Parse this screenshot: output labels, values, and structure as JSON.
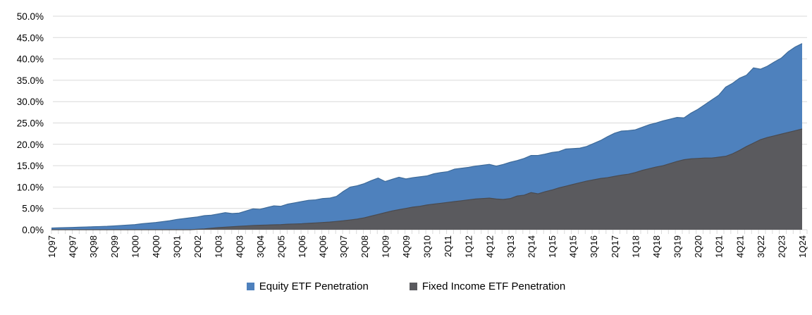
{
  "chart_data": {
    "type": "area",
    "stacked": false,
    "title": "",
    "xlabel": "",
    "ylabel": "",
    "y_axis": {
      "min": 0,
      "max": 50,
      "tick_step": 5,
      "tick_labels": [
        "0.0%",
        "5.0%",
        "10.0%",
        "15.0%",
        "20.0%",
        "25.0%",
        "30.0%",
        "35.0%",
        "40.0%",
        "45.0%",
        "50.0%"
      ]
    },
    "x_axis": {
      "n_points": 109,
      "label_every_n_points": 3,
      "tick_labels": [
        "1Q97",
        "4Q97",
        "3Q98",
        "2Q99",
        "1Q00",
        "4Q00",
        "3Q01",
        "2Q02",
        "1Q03",
        "4Q03",
        "3Q04",
        "2Q05",
        "1Q06",
        "4Q06",
        "3Q07",
        "2Q08",
        "1Q09",
        "4Q09",
        "3Q10",
        "2Q11",
        "1Q12",
        "4Q12",
        "3Q13",
        "2Q14",
        "1Q15",
        "4Q15",
        "3Q16",
        "2Q17",
        "1Q18",
        "4Q18",
        "3Q19",
        "2Q20",
        "1Q21",
        "4Q21",
        "3Q22",
        "2Q23",
        "1Q24"
      ]
    },
    "grid": true,
    "grid_color": "#d9d9d9",
    "tick_color": "#d9d9d9",
    "axis_label_color": "#000000",
    "legend_position": "bottom",
    "series": [
      {
        "name": "Equity ETF Penetration",
        "color": "#4e81bd",
        "edge_color": "#3d6a99",
        "values": [
          0.4,
          0.45,
          0.5,
          0.55,
          0.6,
          0.65,
          0.7,
          0.75,
          0.8,
          0.9,
          1.0,
          1.1,
          1.2,
          1.4,
          1.55,
          1.7,
          1.9,
          2.1,
          2.4,
          2.6,
          2.8,
          3.0,
          3.3,
          3.4,
          3.7,
          4.0,
          3.8,
          3.9,
          4.4,
          4.9,
          4.8,
          5.2,
          5.6,
          5.5,
          6.0,
          6.3,
          6.6,
          6.9,
          7.0,
          7.3,
          7.4,
          7.8,
          9.0,
          10.0,
          10.3,
          10.8,
          11.5,
          12.1,
          11.3,
          11.8,
          12.3,
          11.9,
          12.2,
          12.4,
          12.6,
          13.1,
          13.4,
          13.6,
          14.2,
          14.4,
          14.6,
          14.9,
          15.1,
          15.3,
          14.9,
          15.3,
          15.8,
          16.2,
          16.7,
          17.4,
          17.4,
          17.7,
          18.1,
          18.3,
          18.9,
          19.0,
          19.1,
          19.5,
          20.2,
          20.9,
          21.8,
          22.6,
          23.1,
          23.2,
          23.4,
          24.0,
          24.6,
          25.0,
          25.5,
          25.9,
          26.3,
          26.2,
          27.3,
          28.2,
          29.3,
          30.4,
          31.5,
          33.4,
          34.3,
          35.5,
          36.2,
          37.9,
          37.6,
          38.3,
          39.3,
          40.2,
          41.7,
          42.8,
          43.6
        ]
      },
      {
        "name": "Fixed Income ETF Penetration",
        "color": "#5a5a5e",
        "edge_color": "#4a4a4e",
        "values": [
          0,
          0,
          0,
          0,
          0,
          0,
          0,
          0,
          0,
          0,
          0,
          0,
          0,
          0,
          0,
          0,
          0,
          0,
          0,
          0,
          0,
          0.1,
          0.2,
          0.35,
          0.5,
          0.6,
          0.7,
          0.8,
          0.9,
          1.0,
          1.05,
          1.1,
          1.15,
          1.2,
          1.3,
          1.35,
          1.4,
          1.5,
          1.6,
          1.7,
          1.8,
          1.95,
          2.1,
          2.3,
          2.5,
          2.8,
          3.2,
          3.6,
          4.0,
          4.4,
          4.7,
          5.0,
          5.3,
          5.5,
          5.8,
          6.0,
          6.2,
          6.4,
          6.6,
          6.8,
          7.0,
          7.2,
          7.3,
          7.4,
          7.2,
          7.1,
          7.3,
          7.9,
          8.1,
          8.7,
          8.4,
          8.9,
          9.3,
          9.8,
          10.2,
          10.6,
          11.0,
          11.4,
          11.7,
          12.0,
          12.2,
          12.5,
          12.8,
          13.0,
          13.4,
          13.9,
          14.3,
          14.7,
          15.0,
          15.5,
          16.0,
          16.4,
          16.6,
          16.7,
          16.8,
          16.8,
          17.0,
          17.2,
          17.8,
          18.6,
          19.5,
          20.3,
          21.1,
          21.6,
          22.0,
          22.4,
          22.8,
          23.2,
          23.6
        ]
      }
    ]
  },
  "legend": {
    "items": [
      {
        "label": "Equity ETF Penetration",
        "color": "#4e81bd"
      },
      {
        "label": "Fixed Income ETF Penetration",
        "color": "#5a5a5e"
      }
    ]
  }
}
